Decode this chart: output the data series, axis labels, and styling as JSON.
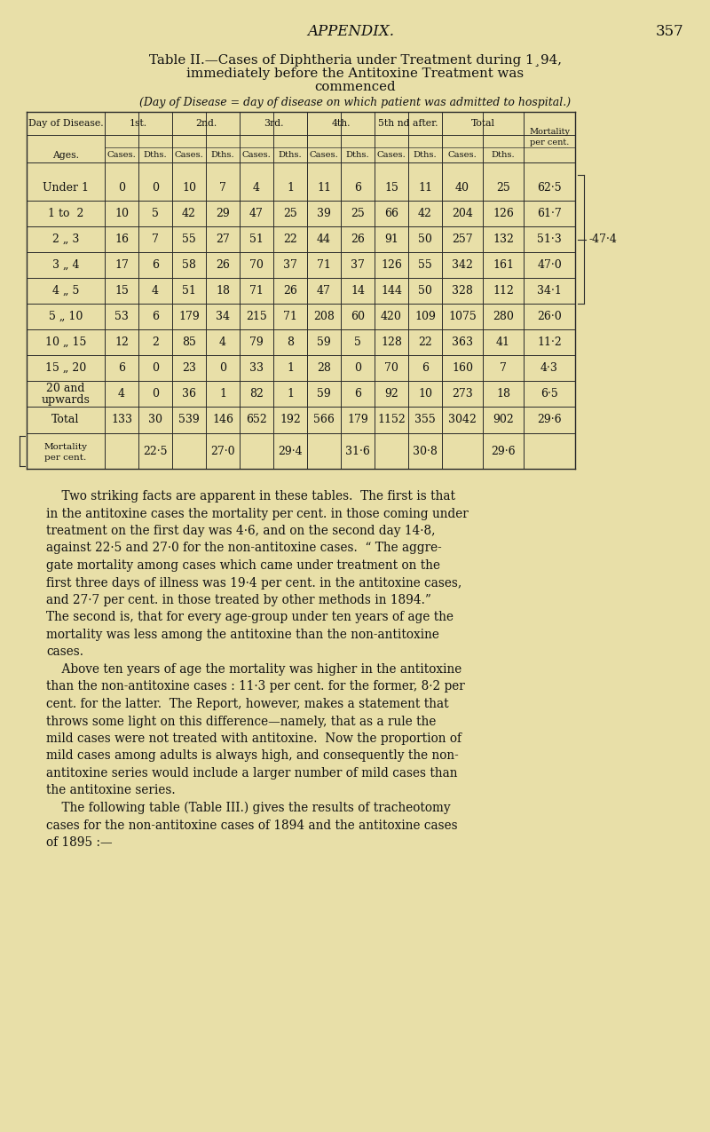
{
  "bg_color": "#e8dfa8",
  "page_number": "357",
  "appendix_text": "APPENDIX.",
  "title_line1": "Table II.—Cases of Diphtheria under Treatment during 1¸94,",
  "title_line2": "immediately before the Antitoxine Treatment was",
  "title_line3": "commenced",
  "subtitle": "(Day of Disease = day of disease on which patient was admitted to hospital.)",
  "data_rows": [
    [
      "Under 1",
      "0",
      "0",
      "10",
      "7",
      "4",
      "1",
      "11",
      "6",
      "15",
      "11",
      "40",
      "25",
      "62·5"
    ],
    [
      "1 to  2",
      "10",
      "5",
      "42",
      "29",
      "47",
      "25",
      "39",
      "25",
      "66",
      "42",
      "204",
      "126",
      "61·7"
    ],
    [
      "2 „ 3",
      "16",
      "7",
      "55",
      "27",
      "51",
      "22",
      "44",
      "26",
      "91",
      "50",
      "257",
      "132",
      "51·3"
    ],
    [
      "3 „ 4",
      "17",
      "6",
      "58",
      "26",
      "70",
      "37",
      "71",
      "37",
      "126",
      "55",
      "342",
      "161",
      "47·0"
    ],
    [
      "4 „ 5",
      "15",
      "4",
      "51",
      "18",
      "71",
      "26",
      "47",
      "14",
      "144",
      "50",
      "328",
      "112",
      "34·1"
    ],
    [
      "5 „ 10",
      "53",
      "6",
      "179",
      "34",
      "215",
      "71",
      "208",
      "60",
      "420",
      "109",
      "1075",
      "280",
      "26·0"
    ],
    [
      "10 „ 15",
      "12",
      "2",
      "85",
      "4",
      "79",
      "8",
      "59",
      "5",
      "128",
      "22",
      "363",
      "41",
      "11·2"
    ],
    [
      "15 „ 20",
      "6",
      "0",
      "23",
      "0",
      "33",
      "1",
      "28",
      "0",
      "70",
      "6",
      "160",
      "7",
      "4·3"
    ],
    [
      "20 and\nupwards",
      "4",
      "0",
      "36",
      "1",
      "82",
      "1",
      "59",
      "6",
      "92",
      "10",
      "273",
      "18",
      "6·5"
    ]
  ],
  "total_row": [
    "Total",
    "133",
    "30",
    "539",
    "146",
    "652",
    "192",
    "566",
    "179",
    "1152",
    "355",
    "3042",
    "902",
    "29·6"
  ],
  "mortality_vals": [
    "22·5",
    "27·0",
    "29·4",
    "31·6",
    "30·8",
    "29·6"
  ],
  "bracket_value": "-47·4",
  "body_text": [
    "    Two striking facts are apparent in these tables.  The first is that",
    "in the antitoxine cases the mortality per cent. in those coming under",
    "treatment on the first day was 4·6, and on the second day 14·8,",
    "against 22·5 and 27·0 for the non-antitoxine cases.  “ The aggre-",
    "gate mortality among cases which came under treatment on the",
    "first three days of illness was 19·4 per cent. in the antitoxine cases,",
    "and 27·7 per cent. in those treated by other methods in 1894.”",
    "The second is, that for every age-group under ten years of age the",
    "mortality was less among the antitoxine than the non-antitoxine",
    "cases.",
    "    Above ten years of age the mortality was higher in the antitoxine",
    "than the non-antitoxine cases : 11·3 per cent. for the former, 8·2 per",
    "cent. for the latter.  The Report, however, makes a statement that",
    "throws some light on this difference—namely, that as a rule the",
    "mild cases were not treated with antitoxine.  Now the proportion of",
    "mild cases among adults is always high, and consequently the non-",
    "antitoxine series would include a larger number of mild cases than",
    "the antitoxine series.",
    "    The following table (Table III.) gives the results of tracheotomy",
    "cases for the non-antitoxine cases of 1894 and the antitoxine cases",
    "of 1895 :—"
  ]
}
